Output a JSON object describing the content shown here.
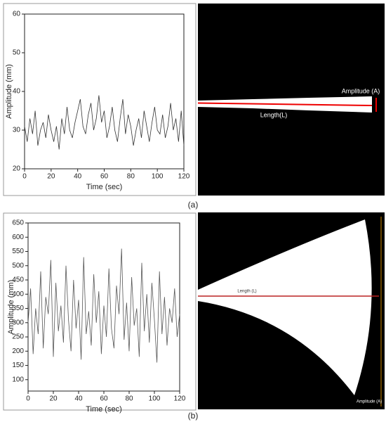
{
  "chart_data": [
    {
      "type": "line",
      "xlabel": "Time (sec)",
      "ylabel": "Amplitude (mm)",
      "color": "#333333",
      "x": [
        0,
        2,
        4,
        6,
        8,
        10,
        12,
        14,
        16,
        18,
        20,
        22,
        24,
        26,
        28,
        30,
        32,
        34,
        36,
        38,
        40,
        42,
        44,
        46,
        48,
        50,
        52,
        54,
        56,
        58,
        60,
        62,
        64,
        66,
        68,
        70,
        72,
        74,
        76,
        78,
        80,
        82,
        84,
        86,
        88,
        90,
        92,
        94,
        96,
        98,
        100,
        102,
        104,
        106,
        108,
        110,
        112,
        114,
        116,
        118,
        120
      ],
      "values": [
        31,
        27,
        33,
        29,
        35,
        26,
        30,
        32,
        28,
        34,
        30,
        27,
        31,
        25,
        33,
        29,
        36,
        30,
        28,
        32,
        35,
        38,
        31,
        29,
        34,
        37,
        30,
        33,
        39,
        32,
        35,
        28,
        31,
        36,
        30,
        27,
        33,
        38,
        29,
        34,
        31,
        26,
        30,
        33,
        28,
        35,
        31,
        27,
        32,
        36,
        30,
        29,
        34,
        28,
        31,
        37,
        30,
        33,
        27,
        35,
        26
      ],
      "xlim": [
        0,
        120
      ],
      "xticks": [
        0,
        20,
        40,
        60,
        80,
        100,
        120
      ],
      "ylim": [
        20,
        60
      ],
      "yticks": [
        20,
        30,
        40,
        50,
        60
      ]
    },
    {
      "type": "line",
      "xlabel": "Time (sec)",
      "ylabel": "Amplitude (mm)",
      "color": "#555555",
      "x": [
        0,
        2,
        4,
        6,
        8,
        10,
        12,
        14,
        16,
        18,
        20,
        22,
        24,
        26,
        28,
        30,
        32,
        34,
        36,
        38,
        40,
        42,
        44,
        46,
        48,
        50,
        52,
        54,
        56,
        58,
        60,
        62,
        64,
        66,
        68,
        70,
        72,
        74,
        76,
        78,
        80,
        82,
        84,
        86,
        88,
        90,
        92,
        94,
        96,
        98,
        100,
        102,
        104,
        106,
        108,
        110,
        112,
        114,
        116,
        118,
        120
      ],
      "values": [
        300,
        420,
        190,
        350,
        260,
        480,
        210,
        390,
        330,
        520,
        180,
        440,
        270,
        360,
        230,
        500,
        310,
        200,
        450,
        280,
        380,
        170,
        530,
        260,
        340,
        220,
        470,
        300,
        410,
        190,
        360,
        250,
        490,
        280,
        210,
        430,
        330,
        560,
        240,
        370,
        200,
        460,
        290,
        350,
        180,
        510,
        270,
        400,
        230,
        440,
        310,
        160,
        480,
        260,
        390,
        220,
        350,
        300,
        420,
        250,
        330
      ],
      "xlim": [
        0,
        120
      ],
      "xticks": [
        0,
        20,
        40,
        60,
        80,
        100,
        120
      ],
      "ylim": [
        60,
        650
      ],
      "yticks": [
        100,
        150,
        200,
        250,
        300,
        350,
        400,
        450,
        500,
        550,
        600,
        650
      ]
    }
  ],
  "images": [
    {
      "amplitude": "Amplitude (A)",
      "length": "Length(L)"
    },
    {
      "amplitude": "Amplitude (A)",
      "length": "Length (L)"
    }
  ],
  "captions": [
    "(a)",
    "(b)"
  ]
}
